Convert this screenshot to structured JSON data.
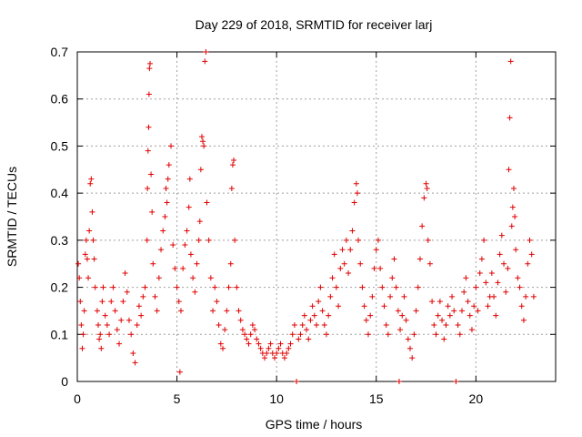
{
  "chart_data": {
    "type": "scatter",
    "title": "Day 229 of 2018, SRMTID for receiver larj",
    "xlabel": "GPS time / hours",
    "ylabel": "SRMTID / TECUs",
    "xlim": [
      0,
      24
    ],
    "ylim": [
      0,
      0.7
    ],
    "xticks": [
      0,
      5,
      10,
      15,
      20
    ],
    "xtick_labels": [
      "0",
      "5",
      "10",
      "15",
      "20"
    ],
    "yticks": [
      0,
      0.1,
      0.2,
      0.3,
      0.4,
      0.5,
      0.6,
      0.7
    ],
    "ytick_labels": [
      "0",
      "0.1",
      "0.2",
      "0.3",
      "0.4",
      "0.5",
      "0.6",
      "0.7"
    ],
    "grid": true,
    "marker": "+",
    "color": "#e00000",
    "series": [
      {
        "name": "SRMTID",
        "points": [
          [
            0.05,
            0.25
          ],
          [
            0.1,
            0.22
          ],
          [
            0.15,
            0.17
          ],
          [
            0.2,
            0.12
          ],
          [
            0.25,
            0.07
          ],
          [
            0.3,
            0.1
          ],
          [
            0.35,
            0.15
          ],
          [
            0.4,
            0.27
          ],
          [
            0.45,
            0.3
          ],
          [
            0.5,
            0.26
          ],
          [
            0.55,
            0.22
          ],
          [
            0.6,
            0.32
          ],
          [
            0.65,
            0.42
          ],
          [
            0.7,
            0.43
          ],
          [
            0.75,
            0.36
          ],
          [
            0.8,
            0.3
          ],
          [
            0.85,
            0.26
          ],
          [
            0.9,
            0.2
          ],
          [
            1.0,
            0.15
          ],
          [
            1.05,
            0.12
          ],
          [
            1.1,
            0.09
          ],
          [
            1.15,
            0.1
          ],
          [
            1.2,
            0.07
          ],
          [
            1.25,
            0.17
          ],
          [
            1.3,
            0.2
          ],
          [
            1.4,
            0.14
          ],
          [
            1.5,
            0.12
          ],
          [
            1.6,
            0.1
          ],
          [
            1.7,
            0.17
          ],
          [
            1.8,
            0.2
          ],
          [
            1.9,
            0.15
          ],
          [
            2.0,
            0.11
          ],
          [
            2.1,
            0.08
          ],
          [
            2.2,
            0.13
          ],
          [
            2.3,
            0.17
          ],
          [
            2.4,
            0.23
          ],
          [
            2.5,
            0.19
          ],
          [
            2.6,
            0.13
          ],
          [
            2.7,
            0.1
          ],
          [
            2.8,
            0.06
          ],
          [
            2.9,
            0.04
          ],
          [
            3.0,
            0.12
          ],
          [
            3.1,
            0.16
          ],
          [
            3.2,
            0.14
          ],
          [
            3.3,
            0.18
          ],
          [
            3.4,
            0.2
          ],
          [
            3.5,
            0.3
          ],
          [
            3.52,
            0.41
          ],
          [
            3.55,
            0.49
          ],
          [
            3.58,
            0.54
          ],
          [
            3.6,
            0.61
          ],
          [
            3.62,
            0.665
          ],
          [
            3.65,
            0.675
          ],
          [
            3.7,
            0.44
          ],
          [
            3.75,
            0.36
          ],
          [
            3.8,
            0.25
          ],
          [
            3.9,
            0.18
          ],
          [
            4.0,
            0.15
          ],
          [
            4.1,
            0.22
          ],
          [
            4.2,
            0.28
          ],
          [
            4.3,
            0.32
          ],
          [
            4.4,
            0.35
          ],
          [
            4.45,
            0.41
          ],
          [
            4.5,
            0.38
          ],
          [
            4.55,
            0.43
          ],
          [
            4.6,
            0.46
          ],
          [
            4.7,
            0.5
          ],
          [
            4.8,
            0.29
          ],
          [
            4.9,
            0.24
          ],
          [
            5.0,
            0.2
          ],
          [
            5.1,
            0.17
          ],
          [
            5.15,
            0.02
          ],
          [
            5.2,
            0.15
          ],
          [
            5.3,
            0.24
          ],
          [
            5.4,
            0.29
          ],
          [
            5.5,
            0.32
          ],
          [
            5.6,
            0.37
          ],
          [
            5.65,
            0.43
          ],
          [
            5.7,
            0.27
          ],
          [
            5.8,
            0.22
          ],
          [
            5.9,
            0.19
          ],
          [
            6.0,
            0.25
          ],
          [
            6.1,
            0.3
          ],
          [
            6.15,
            0.34
          ],
          [
            6.2,
            0.45
          ],
          [
            6.25,
            0.52
          ],
          [
            6.3,
            0.51
          ],
          [
            6.35,
            0.5
          ],
          [
            6.4,
            0.68
          ],
          [
            6.45,
            0.7
          ],
          [
            6.5,
            0.38
          ],
          [
            6.6,
            0.3
          ],
          [
            6.7,
            0.22
          ],
          [
            6.8,
            0.15
          ],
          [
            6.9,
            0.2
          ],
          [
            7.0,
            0.17
          ],
          [
            7.1,
            0.12
          ],
          [
            7.2,
            0.08
          ],
          [
            7.3,
            0.07
          ],
          [
            7.4,
            0.11
          ],
          [
            7.5,
            0.15
          ],
          [
            7.6,
            0.2
          ],
          [
            7.7,
            0.25
          ],
          [
            7.75,
            0.41
          ],
          [
            7.8,
            0.46
          ],
          [
            7.85,
            0.47
          ],
          [
            7.9,
            0.3
          ],
          [
            8.0,
            0.2
          ],
          [
            8.1,
            0.15
          ],
          [
            8.2,
            0.13
          ],
          [
            8.3,
            0.11
          ],
          [
            8.4,
            0.1
          ],
          [
            8.5,
            0.09
          ],
          [
            8.6,
            0.08
          ],
          [
            8.7,
            0.1
          ],
          [
            8.8,
            0.12
          ],
          [
            8.9,
            0.11
          ],
          [
            9.0,
            0.09
          ],
          [
            9.1,
            0.08
          ],
          [
            9.2,
            0.07
          ],
          [
            9.3,
            0.06
          ],
          [
            9.4,
            0.05
          ],
          [
            9.5,
            0.06
          ],
          [
            9.6,
            0.07
          ],
          [
            9.7,
            0.08
          ],
          [
            9.8,
            0.06
          ],
          [
            9.9,
            0.05
          ],
          [
            10.0,
            0.06
          ],
          [
            10.1,
            0.07
          ],
          [
            10.2,
            0.08
          ],
          [
            10.3,
            0.06
          ],
          [
            10.4,
            0.05
          ],
          [
            10.5,
            0.06
          ],
          [
            10.6,
            0.07
          ],
          [
            10.7,
            0.08
          ],
          [
            10.8,
            0.1
          ],
          [
            10.9,
            0.12
          ],
          [
            11.0,
            0.0
          ],
          [
            11.1,
            0.09
          ],
          [
            11.2,
            0.1
          ],
          [
            11.3,
            0.12
          ],
          [
            11.4,
            0.14
          ],
          [
            11.5,
            0.11
          ],
          [
            11.6,
            0.09
          ],
          [
            11.7,
            0.13
          ],
          [
            11.8,
            0.16
          ],
          [
            11.9,
            0.14
          ],
          [
            12.0,
            0.12
          ],
          [
            12.1,
            0.17
          ],
          [
            12.2,
            0.2
          ],
          [
            12.3,
            0.15
          ],
          [
            12.4,
            0.12
          ],
          [
            12.5,
            0.1
          ],
          [
            12.6,
            0.14
          ],
          [
            12.7,
            0.18
          ],
          [
            12.8,
            0.22
          ],
          [
            12.9,
            0.27
          ],
          [
            13.0,
            0.2
          ],
          [
            13.1,
            0.16
          ],
          [
            13.2,
            0.24
          ],
          [
            13.3,
            0.28
          ],
          [
            13.4,
            0.25
          ],
          [
            13.5,
            0.3
          ],
          [
            13.6,
            0.23
          ],
          [
            13.7,
            0.28
          ],
          [
            13.8,
            0.32
          ],
          [
            13.9,
            0.38
          ],
          [
            14.0,
            0.42
          ],
          [
            14.05,
            0.4
          ],
          [
            14.1,
            0.3
          ],
          [
            14.2,
            0.25
          ],
          [
            14.3,
            0.2
          ],
          [
            14.4,
            0.16
          ],
          [
            14.5,
            0.13
          ],
          [
            14.6,
            0.1
          ],
          [
            14.7,
            0.14
          ],
          [
            14.8,
            0.18
          ],
          [
            14.9,
            0.24
          ],
          [
            15.0,
            0.28
          ],
          [
            15.1,
            0.3
          ],
          [
            15.2,
            0.24
          ],
          [
            15.3,
            0.2
          ],
          [
            15.4,
            0.16
          ],
          [
            15.5,
            0.12
          ],
          [
            15.6,
            0.1
          ],
          [
            15.7,
            0.18
          ],
          [
            15.8,
            0.22
          ],
          [
            15.9,
            0.26
          ],
          [
            16.0,
            0.2
          ],
          [
            16.1,
            0.15
          ],
          [
            16.15,
            0.0
          ],
          [
            16.2,
            0.11
          ],
          [
            16.3,
            0.14
          ],
          [
            16.4,
            0.18
          ],
          [
            16.5,
            0.13
          ],
          [
            16.6,
            0.09
          ],
          [
            16.7,
            0.07
          ],
          [
            16.8,
            0.05
          ],
          [
            16.9,
            0.1
          ],
          [
            17.0,
            0.15
          ],
          [
            17.1,
            0.2
          ],
          [
            17.2,
            0.26
          ],
          [
            17.3,
            0.33
          ],
          [
            17.4,
            0.39
          ],
          [
            17.5,
            0.42
          ],
          [
            17.55,
            0.41
          ],
          [
            17.6,
            0.3
          ],
          [
            17.7,
            0.25
          ],
          [
            17.8,
            0.17
          ],
          [
            17.9,
            0.12
          ],
          [
            18.0,
            0.1
          ],
          [
            18.1,
            0.14
          ],
          [
            18.2,
            0.17
          ],
          [
            18.3,
            0.13
          ],
          [
            18.4,
            0.09
          ],
          [
            18.5,
            0.12
          ],
          [
            18.6,
            0.16
          ],
          [
            18.7,
            0.14
          ],
          [
            18.8,
            0.18
          ],
          [
            18.9,
            0.15
          ],
          [
            19.0,
            0.0
          ],
          [
            19.1,
            0.12
          ],
          [
            19.2,
            0.1
          ],
          [
            19.3,
            0.15
          ],
          [
            19.4,
            0.19
          ],
          [
            19.5,
            0.22
          ],
          [
            19.6,
            0.17
          ],
          [
            19.7,
            0.14
          ],
          [
            19.8,
            0.11
          ],
          [
            19.9,
            0.16
          ],
          [
            20.0,
            0.2
          ],
          [
            20.1,
            0.15
          ],
          [
            20.2,
            0.23
          ],
          [
            20.3,
            0.26
          ],
          [
            20.4,
            0.3
          ],
          [
            20.5,
            0.21
          ],
          [
            20.6,
            0.16
          ],
          [
            20.7,
            0.18
          ],
          [
            20.8,
            0.23
          ],
          [
            20.9,
            0.18
          ],
          [
            21.0,
            0.14
          ],
          [
            21.1,
            0.21
          ],
          [
            21.2,
            0.27
          ],
          [
            21.3,
            0.31
          ],
          [
            21.4,
            0.25
          ],
          [
            21.5,
            0.19
          ],
          [
            21.6,
            0.24
          ],
          [
            21.65,
            0.45
          ],
          [
            21.7,
            0.56
          ],
          [
            21.75,
            0.68
          ],
          [
            21.8,
            0.33
          ],
          [
            21.85,
            0.37
          ],
          [
            21.9,
            0.41
          ],
          [
            21.95,
            0.35
          ],
          [
            22.0,
            0.28
          ],
          [
            22.1,
            0.22
          ],
          [
            22.2,
            0.2
          ],
          [
            22.3,
            0.16
          ],
          [
            22.4,
            0.13
          ],
          [
            22.5,
            0.18
          ],
          [
            22.6,
            0.25
          ],
          [
            22.7,
            0.3
          ],
          [
            22.8,
            0.27
          ],
          [
            22.9,
            0.18
          ]
        ]
      }
    ]
  }
}
